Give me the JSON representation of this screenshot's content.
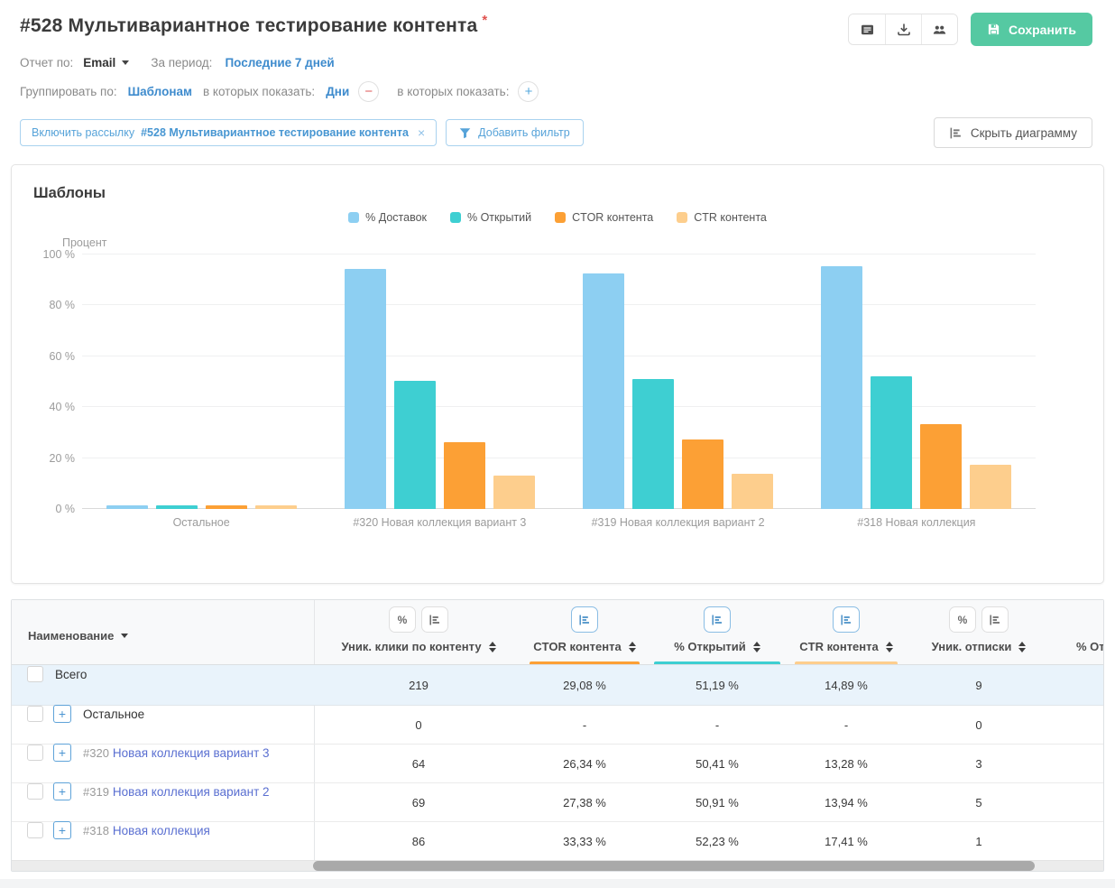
{
  "header": {
    "title": "#528 Мультивариантное тестирование контента",
    "required_mark": "*",
    "save_label": "Сохранить"
  },
  "controls": {
    "report_by_label": "Отчет по:",
    "report_by_value": "Email",
    "period_label": "За период:",
    "period_value": "Последние 7 дней",
    "group_by_label": "Группировать по:",
    "group_by_value": "Шаблонам",
    "show_in_label": "в которых показать:",
    "show_in_value": "Дни",
    "show_in_label_2": "в которых показать:"
  },
  "filters": {
    "chip_prefix": "Включить рассылку",
    "chip_value": "#528 Мультивариантное тестирование контента",
    "chip_close": "×",
    "add_filter_label": "Добавить фильтр",
    "hide_chart_label": "Скрыть диаграмму"
  },
  "chart_panel": {
    "title": "Шаблоны"
  },
  "chart_data": {
    "type": "bar",
    "title": "Шаблоны",
    "ylabel": "Процент",
    "ylim": [
      0,
      100
    ],
    "grid": true,
    "legend_position": "top-center",
    "yticks": [
      {
        "value": 0,
        "label": "0 %"
      },
      {
        "value": 20,
        "label": "20 %"
      },
      {
        "value": 40,
        "label": "40 %"
      },
      {
        "value": 60,
        "label": "60 %"
      },
      {
        "value": 80,
        "label": "80 %"
      },
      {
        "value": 100,
        "label": "100 %"
      }
    ],
    "categories": [
      "Остальное",
      "#320 Новая коллекция вариант 3",
      "#319 Новая коллекция вариант 2",
      "#318 Новая коллекция"
    ],
    "series": [
      {
        "name": "% Доставок",
        "color": "#8DCFF2",
        "values": [
          1.5,
          94.5,
          92.5,
          95.5
        ]
      },
      {
        "name": "% Открытий",
        "color": "#3ECFD2",
        "values": [
          1.5,
          50.41,
          50.91,
          52.23
        ]
      },
      {
        "name": "CTOR контента",
        "color": "#FCA035",
        "values": [
          1.5,
          26.34,
          27.38,
          33.33
        ]
      },
      {
        "name": "CTR контента",
        "color": "#FDCE8D",
        "values": [
          1.5,
          13.28,
          13.94,
          17.41
        ]
      }
    ]
  },
  "table": {
    "columns": [
      {
        "label": "Наименование",
        "tools": [],
        "underline": null,
        "sortable": false,
        "dropdown": true
      },
      {
        "label": "Уник. клики по контенту",
        "tools": [
          "percent",
          "chart"
        ],
        "tools_active": false,
        "underline": null,
        "sortable": true
      },
      {
        "label": "CTOR контента",
        "tools": [
          "chart"
        ],
        "tools_active": true,
        "underline": "#FCA035",
        "sortable": true
      },
      {
        "label": "% Открытий",
        "tools": [
          "chart"
        ],
        "tools_active": true,
        "underline": "#3ECFD2",
        "sortable": true
      },
      {
        "label": "CTR контента",
        "tools": [
          "chart"
        ],
        "tools_active": true,
        "underline": "#FDCE8D",
        "sortable": true
      },
      {
        "label": "Уник. отписки",
        "tools": [
          "percent",
          "chart"
        ],
        "tools_active": false,
        "underline": null,
        "sortable": true
      },
      {
        "label": "% Отписо",
        "tools": [],
        "underline": null,
        "sortable": false
      }
    ],
    "rows": [
      {
        "name": "Всего",
        "total": true,
        "expandable": false,
        "link": false,
        "id": null,
        "values": [
          "219",
          "29,08 %",
          "51,19 %",
          "14,89 %",
          "9"
        ]
      },
      {
        "name": "Остальное",
        "total": false,
        "expandable": true,
        "link": false,
        "id": null,
        "values": [
          "0",
          "-",
          "-",
          "-",
          "0"
        ]
      },
      {
        "name": "Новая коллекция вариант 3",
        "total": false,
        "expandable": true,
        "link": true,
        "id": "#320",
        "values": [
          "64",
          "26,34 %",
          "50,41 %",
          "13,28 %",
          "3"
        ]
      },
      {
        "name": "Новая коллекция вариант 2",
        "total": false,
        "expandable": true,
        "link": true,
        "id": "#319",
        "values": [
          "69",
          "27,38 %",
          "50,91 %",
          "13,94 %",
          "5"
        ]
      },
      {
        "name": "Новая коллекция",
        "total": false,
        "expandable": true,
        "link": true,
        "id": "#318",
        "values": [
          "86",
          "33,33 %",
          "52,23 %",
          "17,41 %",
          "1"
        ]
      }
    ]
  },
  "colors": {
    "accent_green": "#55c9a2",
    "link_blue": "#3e8bcd",
    "chip_blue": "#57a3d9",
    "table_link": "#5a6fd1",
    "total_row_bg": "#e9f3fb",
    "bar_blue": "#8DCFF2",
    "bar_teal": "#3ECFD2",
    "bar_orange": "#FCA035",
    "bar_pale_orange": "#FDCE8D"
  }
}
